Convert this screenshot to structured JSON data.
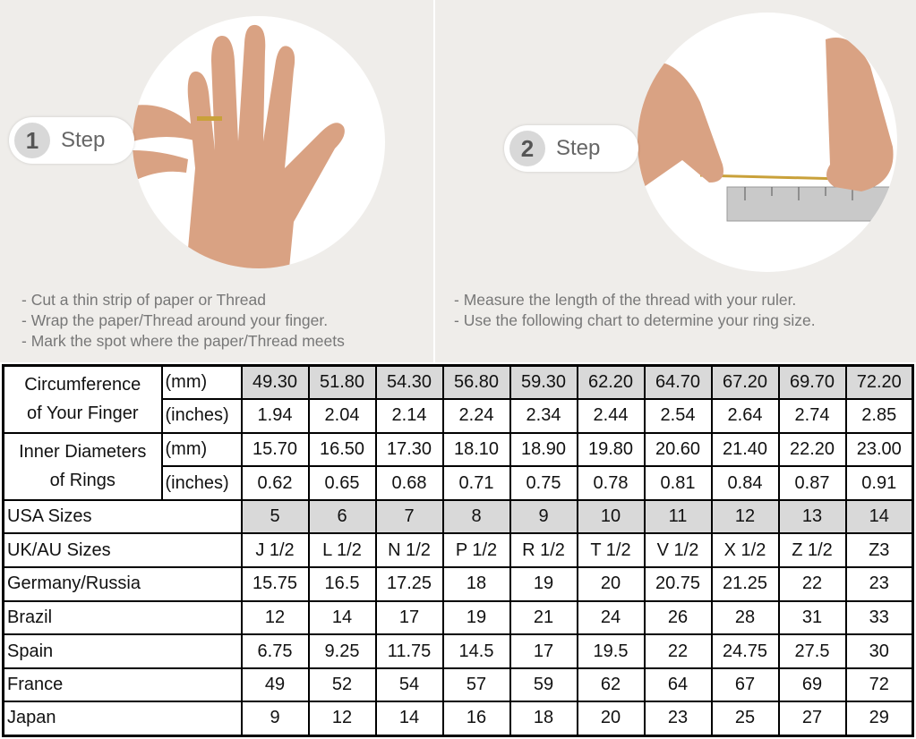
{
  "step1": {
    "number": "1",
    "label": "Step",
    "instructions": [
      "- Cut a thin strip of paper or Thread",
      "- Wrap the paper/Thread around your finger.",
      "- Mark the spot where the paper/Thread meets"
    ]
  },
  "step2": {
    "number": "2",
    "label": "Step",
    "instructions": [
      "- Measure the length of the thread with your ruler.",
      "- Use the following chart to determine your ring size."
    ]
  },
  "colors": {
    "background": "#efedea",
    "shaded_cell": "#d9d9d9"
  },
  "chart_data": {
    "type": "table",
    "groups": [
      {
        "label_lines": [
          "Circumference",
          "of Your Finger"
        ],
        "rows": [
          {
            "unit": "(mm)",
            "values": [
              "49.30",
              "51.80",
              "54.30",
              "56.80",
              "59.30",
              "62.20",
              "64.70",
              "67.20",
              "69.70",
              "72.20"
            ],
            "shaded": true
          },
          {
            "unit": "(inches)",
            "values": [
              "1.94",
              "2.04",
              "2.14",
              "2.24",
              "2.34",
              "2.44",
              "2.54",
              "2.64",
              "2.74",
              "2.85"
            ]
          }
        ]
      },
      {
        "label_lines": [
          "Inner Diameters",
          "of Rings"
        ],
        "rows": [
          {
            "unit": "(mm)",
            "values": [
              "15.70",
              "16.50",
              "17.30",
              "18.10",
              "18.90",
              "19.80",
              "20.60",
              "21.40",
              "22.20",
              "23.00"
            ]
          },
          {
            "unit": "(inches)",
            "values": [
              "0.62",
              "0.65",
              "0.68",
              "0.71",
              "0.75",
              "0.78",
              "0.81",
              "0.84",
              "0.87",
              "0.91"
            ]
          }
        ]
      }
    ],
    "rows": [
      {
        "label": "USA Sizes",
        "values": [
          "5",
          "6",
          "7",
          "8",
          "9",
          "10",
          "11",
          "12",
          "13",
          "14"
        ],
        "shaded": true
      },
      {
        "label": "UK/AU Sizes",
        "values": [
          "J 1/2",
          "L 1/2",
          "N 1/2",
          "P 1/2",
          "R 1/2",
          "T 1/2",
          "V 1/2",
          "X 1/2",
          "Z 1/2",
          "Z3"
        ]
      },
      {
        "label": "Germany/Russia",
        "values": [
          "15.75",
          "16.5",
          "17.25",
          "18",
          "19",
          "20",
          "20.75",
          "21.25",
          "22",
          "23"
        ]
      },
      {
        "label": "Brazil",
        "values": [
          "12",
          "14",
          "17",
          "19",
          "21",
          "24",
          "26",
          "28",
          "31",
          "33"
        ]
      },
      {
        "label": "Spain",
        "values": [
          "6.75",
          "9.25",
          "11.75",
          "14.5",
          "17",
          "19.5",
          "22",
          "24.75",
          "27.5",
          "30"
        ]
      },
      {
        "label": "France",
        "values": [
          "49",
          "52",
          "54",
          "57",
          "59",
          "62",
          "64",
          "67",
          "69",
          "72"
        ]
      },
      {
        "label": "Japan",
        "values": [
          "9",
          "12",
          "14",
          "16",
          "18",
          "20",
          "23",
          "25",
          "27",
          "29"
        ]
      }
    ]
  }
}
